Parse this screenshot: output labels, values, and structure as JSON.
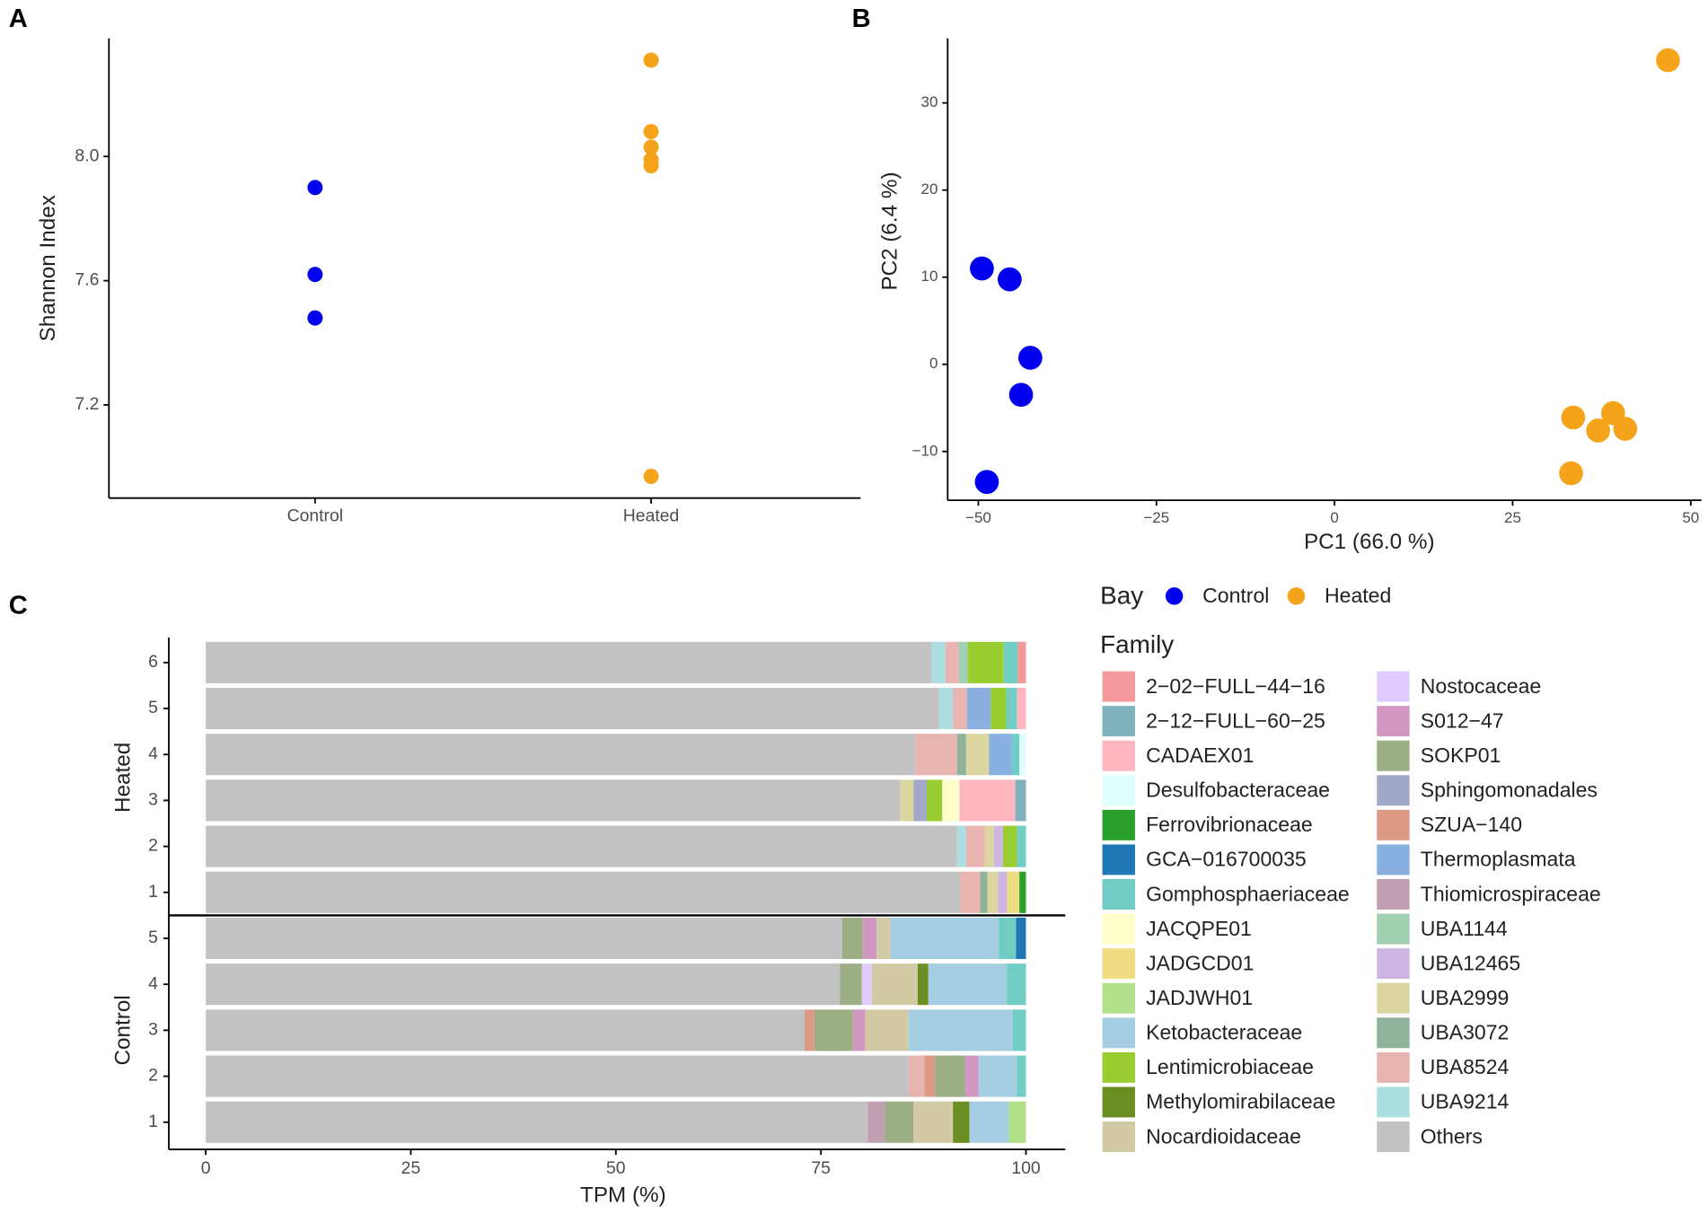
{
  "chart_data": [
    {
      "type": "strip",
      "panel_label": "A",
      "ylabel": "Shannon Index",
      "categories": [
        "Control",
        "Heated"
      ],
      "values": [
        [
          7.9,
          7.62,
          7.48
        ],
        [
          8.31,
          8.08,
          8.03,
          7.99,
          7.97,
          6.97
        ]
      ],
      "colors": [
        "#0000ee",
        "#f5a31a"
      ],
      "ylim": [
        6.9,
        8.38
      ],
      "yticks": [
        {
          "value": 7.2,
          "label": "7.2"
        },
        {
          "value": 7.6,
          "label": "7.6"
        },
        {
          "value": 8.0,
          "label": "8.0"
        }
      ]
    },
    {
      "type": "scatter",
      "panel_label": "B",
      "xlabel": "PC1 (66.0 %)",
      "ylabel": "PC2 (6.4 %)",
      "legend_title": "Bay",
      "series": [
        {
          "name": "Control",
          "color": "#0000ee",
          "x": [
            -49.5,
            -45.6,
            -42.7,
            -44.0,
            -48.8
          ],
          "y": [
            11.0,
            9.75,
            0.75,
            -3.5,
            -13.5
          ]
        },
        {
          "name": "Heated",
          "color": "#f5a31a",
          "x": [
            46.8,
            33.5,
            39.1,
            37.0,
            40.8,
            33.2
          ],
          "y": [
            34.9,
            -6.1,
            -5.6,
            -7.6,
            -7.4,
            -12.5
          ]
        }
      ],
      "xlim": [
        -54.3,
        51.5
      ],
      "ylim": [
        -15.6,
        37.4
      ],
      "xticks": [
        {
          "value": -50,
          "label": "−50"
        },
        {
          "value": -25,
          "label": "−25"
        },
        0,
        25,
        50
      ],
      "yticks": [
        {
          "value": -10,
          "label": "−10"
        },
        0,
        10,
        20,
        30
      ]
    },
    {
      "type": "stacked_barh",
      "panel_label": "C",
      "xlabel": "TPM (%)",
      "legend_title": "Family",
      "groups": [
        {
          "name": "Heated",
          "categories": [
            "6",
            "5",
            "4",
            "3",
            "2",
            "1"
          ]
        },
        {
          "name": "Control",
          "categories": [
            "5",
            "4",
            "3",
            "2",
            "1"
          ]
        }
      ],
      "xlim": [
        -4.5,
        104.8
      ],
      "xticks": [
        0,
        25,
        50,
        75,
        100
      ],
      "series": [
        {
          "name": "2−02−FULL−44−16",
          "color": "#f4999b",
          "values": [
            1.0,
            0,
            0,
            0,
            0,
            0,
            0,
            0,
            0,
            0,
            0
          ]
        },
        {
          "name": "2−12−FULL−60−25",
          "color": "#7fb2bd",
          "values": [
            0,
            0,
            0,
            1.3,
            0,
            0,
            0,
            0,
            0,
            0,
            0
          ]
        },
        {
          "name": "CADAEX01",
          "color": "#ffb6c1",
          "values": [
            0,
            1.1,
            0,
            6.8,
            0,
            0,
            0,
            0,
            0,
            0,
            0
          ]
        },
        {
          "name": "Desulfobacteraceae",
          "color": "#e0fffa",
          "values": [
            0,
            0,
            0.8,
            0,
            0,
            0,
            0,
            0,
            0,
            0,
            0
          ]
        },
        {
          "name": "Ferrovibrionaceae",
          "color": "#2ca02c",
          "values": [
            0,
            0,
            0,
            0,
            0,
            0.8,
            0,
            0,
            0,
            0,
            0
          ]
        },
        {
          "name": "GCA−016700035",
          "color": "#1f77b4",
          "values": [
            0,
            0,
            0,
            0,
            0,
            0,
            1.2,
            0,
            0,
            0,
            0
          ]
        },
        {
          "name": "Gomphosphaeriaceae",
          "color": "#6fcdc4",
          "values": [
            1.7,
            1.3,
            0.9,
            0,
            1.1,
            0,
            2.1,
            2.3,
            1.6,
            1.1,
            0
          ]
        },
        {
          "name": "JACQPE01",
          "color": "#ffffcc",
          "values": [
            0,
            0,
            0,
            2.1,
            0,
            0,
            0,
            0,
            0,
            0,
            0
          ]
        },
        {
          "name": "JADGCD01",
          "color": "#f0dc82",
          "values": [
            0,
            0,
            0,
            0,
            0,
            1.5,
            0,
            0,
            0,
            0,
            0
          ]
        },
        {
          "name": "JADJWH01",
          "color": "#b3e08a",
          "values": [
            0,
            0,
            0,
            0,
            0,
            0,
            0,
            0,
            0,
            0,
            2.1
          ]
        },
        {
          "name": "Ketobacteraceae",
          "color": "#a6cee3",
          "values": [
            0,
            0,
            0,
            0,
            0,
            0,
            13.2,
            9.6,
            12.7,
            4.7,
            4.8
          ]
        },
        {
          "name": "Lentimicrobiaceae",
          "color": "#9acd32",
          "values": [
            4.4,
            1.9,
            0,
            1.9,
            1.7,
            0,
            0,
            0,
            0,
            0,
            0
          ]
        },
        {
          "name": "Methylomirabilaceae",
          "color": "#6b8e23",
          "values": [
            0,
            0,
            0,
            0,
            0,
            0,
            0,
            1.3,
            0,
            0,
            2.0
          ]
        },
        {
          "name": "Nocardioidaceae",
          "color": "#d2c9a5",
          "values": [
            0,
            0,
            0,
            0,
            0,
            0,
            1.7,
            5.6,
            5.3,
            0,
            4.8
          ]
        },
        {
          "name": "Nostocaceae",
          "color": "#e1ccff",
          "values": [
            0,
            0,
            0,
            0,
            0,
            0,
            0,
            1.2,
            0,
            0,
            0
          ]
        },
        {
          "name": "S012−47",
          "color": "#d197c0",
          "values": [
            0,
            0,
            0,
            0,
            0,
            0,
            1.7,
            0,
            1.5,
            1.6,
            0
          ]
        },
        {
          "name": "SOKP01",
          "color": "#9caf84",
          "values": [
            0,
            0,
            0,
            0,
            0,
            0,
            2.5,
            2.7,
            4.7,
            3.7,
            3.5
          ]
        },
        {
          "name": "Sphingomonadales",
          "color": "#a3a8c8",
          "values": [
            0,
            0,
            0,
            1.6,
            0,
            0,
            0,
            0,
            0,
            0,
            0
          ]
        },
        {
          "name": "SZUA−140",
          "color": "#dd9a84",
          "values": [
            0,
            0,
            0,
            0,
            0,
            0,
            0,
            0,
            1.2,
            1.3,
            0
          ]
        },
        {
          "name": "Thermoplasmata",
          "color": "#89b0e0",
          "values": [
            0,
            2.9,
            2.8,
            0,
            0,
            0,
            0,
            0,
            0,
            0,
            0
          ]
        },
        {
          "name": "Thiomicrospiraceae",
          "color": "#c0a0b0",
          "values": [
            0,
            0,
            0,
            0,
            0,
            0,
            0,
            0,
            0,
            0,
            2.1
          ]
        },
        {
          "name": "UBA1144",
          "color": "#a1cfb1",
          "values": [
            1.1,
            0,
            0,
            0,
            0,
            0,
            0,
            0,
            0,
            0,
            0
          ]
        },
        {
          "name": "UBA12465",
          "color": "#cdb6e3",
          "values": [
            0,
            0,
            0,
            0,
            1.1,
            1.1,
            0,
            0,
            0,
            0,
            0
          ]
        },
        {
          "name": "UBA2999",
          "color": "#dbd6a0",
          "values": [
            0,
            0,
            2.8,
            1.6,
            1.1,
            1.3,
            0,
            0,
            0,
            0,
            0
          ]
        },
        {
          "name": "UBA3072",
          "color": "#8fb39a",
          "values": [
            0,
            0,
            1.1,
            0,
            0,
            0.9,
            0,
            0,
            0,
            0,
            0
          ]
        },
        {
          "name": "UBA8524",
          "color": "#e8b4b0",
          "values": [
            1.6,
            1.7,
            5.1,
            0,
            2.3,
            2.4,
            0,
            0,
            0,
            1.9,
            0
          ]
        },
        {
          "name": "UBA9214",
          "color": "#acdde0",
          "values": [
            1.7,
            1.7,
            0,
            0,
            1.1,
            0,
            0,
            0,
            0,
            0,
            0
          ]
        },
        {
          "name": "Others",
          "color": "#c2c2c2",
          "values": [
            88.5,
            89.4,
            86.5,
            84.7,
            91.6,
            92.0,
            77.6,
            77.3,
            73.0,
            85.7,
            80.7
          ]
        }
      ]
    }
  ]
}
